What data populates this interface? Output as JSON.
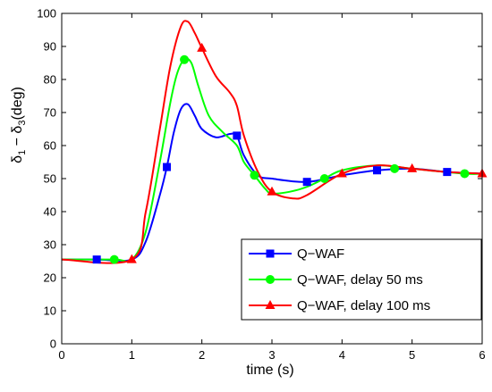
{
  "chart_data": {
    "type": "line",
    "title": "",
    "xlabel": "time (s)",
    "ylabel": "δ",
    "ylabel_parts": {
      "symbol1": "δ",
      "sub1": "1",
      "minus": " − ",
      "symbol2": "δ",
      "sub2": "3",
      "unit": "(deg)"
    },
    "xlim": [
      0,
      6
    ],
    "ylim": [
      0,
      100
    ],
    "xticks": [
      "0",
      "1",
      "2",
      "3",
      "4",
      "5",
      "6"
    ],
    "yticks": [
      "0",
      "10",
      "20",
      "30",
      "40",
      "50",
      "60",
      "70",
      "80",
      "90",
      "100"
    ],
    "grid": false,
    "legend_position": "bottom-right",
    "series": [
      {
        "name": "Q−WAF",
        "color": "#0000ff",
        "marker": "square",
        "x": [
          0,
          0.5,
          1.0,
          1.2,
          1.4,
          1.5,
          1.6,
          1.7,
          1.8,
          1.9,
          2.0,
          2.2,
          2.4,
          2.5,
          2.6,
          2.8,
          3.0,
          3.5,
          4.0,
          4.5,
          5.0,
          5.5,
          6.0
        ],
        "y": [
          25.5,
          25.5,
          25.5,
          31,
          45,
          53.5,
          64,
          71,
          72.5,
          69,
          65,
          62.5,
          63.5,
          63,
          57,
          51,
          50,
          49,
          51,
          52.5,
          53,
          52,
          51.5
        ],
        "marker_x": [
          0.5,
          1.5,
          2.5,
          3.5,
          4.5,
          5.5
        ],
        "marker_y": [
          25.5,
          53.5,
          63,
          49,
          52.5,
          52
        ]
      },
      {
        "name": "Q−WAF, delay 50 ms",
        "color": "#00ff00",
        "marker": "circle",
        "x": [
          0,
          0.75,
          1.0,
          1.2,
          1.4,
          1.55,
          1.65,
          1.75,
          1.85,
          1.95,
          2.1,
          2.3,
          2.5,
          2.6,
          2.75,
          2.9,
          3.0,
          3.25,
          3.5,
          3.75,
          4.0,
          4.5,
          5.0,
          5.75,
          6.0
        ],
        "y": [
          25.5,
          25.5,
          25.5,
          34,
          55,
          73,
          82,
          86,
          85,
          78,
          69,
          64,
          60,
          55,
          51,
          47,
          45.5,
          46,
          47.5,
          50,
          52.5,
          54,
          53,
          51.5,
          51.5
        ],
        "marker_x": [
          0.75,
          1.75,
          2.75,
          3.75,
          4.75,
          5.75
        ],
        "marker_y": [
          25.5,
          86,
          51,
          50,
          53,
          51.5
        ]
      },
      {
        "name": "Q−WAF, delay 100 ms",
        "color": "#ff0000",
        "marker": "triangle",
        "x": [
          0,
          1.0,
          1.2,
          1.4,
          1.55,
          1.7,
          1.8,
          1.9,
          2.0,
          2.2,
          2.4,
          2.5,
          2.6,
          2.8,
          3.0,
          3.3,
          3.5,
          4.0,
          4.5,
          5.0,
          5.5,
          6.0
        ],
        "y": [
          25.5,
          25.5,
          40,
          65,
          84,
          96,
          97.5,
          94,
          89.5,
          81,
          76,
          72,
          63,
          52,
          46,
          44,
          45,
          51.5,
          54,
          53,
          52,
          51.5
        ],
        "marker_x": [
          1.0,
          2.0,
          3.0,
          4.0,
          5.0,
          6.0
        ],
        "marker_y": [
          25.5,
          89.5,
          46,
          51.5,
          53,
          51.5
        ]
      }
    ]
  }
}
